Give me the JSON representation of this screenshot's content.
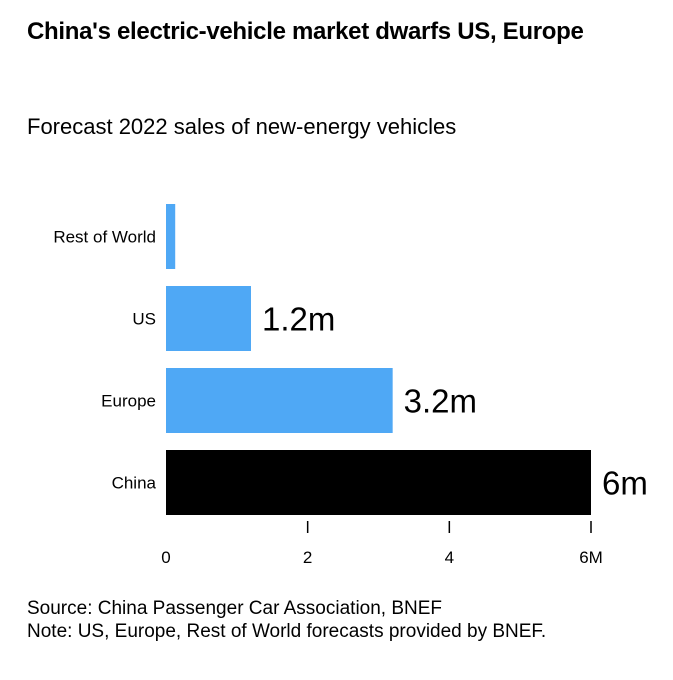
{
  "chart_data": {
    "type": "bar",
    "orientation": "horizontal",
    "title": "China's electric-vehicle market dwarfs US, Europe",
    "subtitle": "Forecast 2022 sales of new-energy vehicles",
    "categories": [
      "Rest of World",
      "US",
      "Europe",
      "China"
    ],
    "values": [
      0.13,
      1.2,
      3.2,
      6
    ],
    "value_labels": [
      "",
      "1.2m",
      "3.2m",
      "6m"
    ],
    "colors": [
      "#4fa8f5",
      "#4fa8f5",
      "#4fa8f5",
      "#000000"
    ],
    "unit": "million vehicles",
    "xlabel": "",
    "ylabel": "",
    "xlim": [
      0,
      6
    ],
    "xticks": [
      0,
      2,
      4,
      6
    ],
    "xtick_labels": [
      "0",
      "2",
      "4",
      "6M"
    ],
    "grid": false,
    "legend": "none"
  },
  "footer": {
    "source": "Source: China Passenger Car Association, BNEF",
    "note": "Note: US, Europe, Rest of World forecasts provided by BNEF."
  }
}
